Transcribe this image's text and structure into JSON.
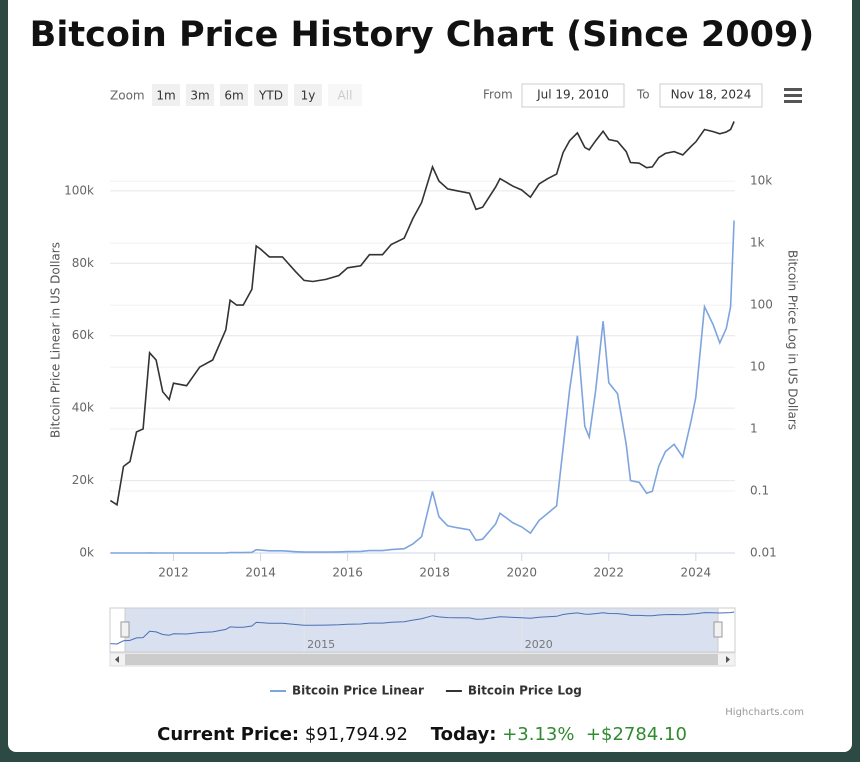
{
  "chart_data": {
    "type": "line",
    "title": "Bitcoin Price History Chart (Since 2009)",
    "y_label": "Bitcoin Price Linear in US Dollars",
    "y2_label": "Bitcoin Price Log in US Dollars",
    "x": [
      2010.55,
      2010.7,
      2010.85,
      2011.0,
      2011.15,
      2011.3,
      2011.45,
      2011.6,
      2011.75,
      2011.9,
      2012.0,
      2012.3,
      2012.6,
      2012.9,
      2013.2,
      2013.3,
      2013.45,
      2013.6,
      2013.8,
      2013.9,
      2014.0,
      2014.2,
      2014.5,
      2014.8,
      2015.0,
      2015.2,
      2015.5,
      2015.8,
      2016.0,
      2016.3,
      2016.5,
      2016.8,
      2017.0,
      2017.3,
      2017.5,
      2017.7,
      2017.95,
      2018.1,
      2018.3,
      2018.5,
      2018.8,
      2018.95,
      2019.1,
      2019.4,
      2019.5,
      2019.8,
      2020.0,
      2020.2,
      2020.4,
      2020.6,
      2020.8,
      2020.95,
      2021.1,
      2021.28,
      2021.45,
      2021.55,
      2021.7,
      2021.87,
      2022.0,
      2022.2,
      2022.4,
      2022.5,
      2022.7,
      2022.87,
      2023.0,
      2023.15,
      2023.3,
      2023.5,
      2023.7,
      2023.9,
      2024.0,
      2024.2,
      2024.4,
      2024.55,
      2024.7,
      2024.8,
      2024.88
    ],
    "series": [
      {
        "name": "Bitcoin Price Linear",
        "color": "#7ea4e0",
        "axis": "y",
        "values": [
          0.07,
          0.06,
          0.25,
          0.3,
          0.9,
          1.0,
          17,
          13,
          4,
          3,
          5.5,
          5,
          10,
          13,
          40,
          120,
          100,
          100,
          180,
          900,
          800,
          600,
          600,
          350,
          250,
          240,
          260,
          300,
          400,
          430,
          650,
          650,
          950,
          1200,
          2500,
          4500,
          17000,
          10000,
          7500,
          7000,
          6400,
          3500,
          3800,
          8000,
          11000,
          8300,
          7200,
          5500,
          9000,
          11000,
          13000,
          29000,
          45000,
          60000,
          35000,
          32000,
          45000,
          64000,
          47000,
          44000,
          30000,
          20000,
          19500,
          16500,
          17000,
          24000,
          28000,
          30000,
          26500,
          37000,
          43000,
          68000,
          63000,
          58000,
          62000,
          68000,
          91795
        ]
      },
      {
        "name": "Bitcoin Price Log",
        "color": "#333333",
        "axis": "y2",
        "values": [
          0.07,
          0.06,
          0.25,
          0.3,
          0.9,
          1.0,
          17,
          13,
          4,
          3,
          5.5,
          5,
          10,
          13,
          40,
          120,
          100,
          100,
          180,
          900,
          800,
          600,
          600,
          350,
          250,
          240,
          260,
          300,
          400,
          430,
          650,
          650,
          950,
          1200,
          2500,
          4500,
          17000,
          10000,
          7500,
          7000,
          6400,
          3500,
          3800,
          8000,
          11000,
          8300,
          7200,
          5500,
          9000,
          11000,
          13000,
          29000,
          45000,
          60000,
          35000,
          32000,
          45000,
          64000,
          47000,
          44000,
          30000,
          20000,
          19500,
          16500,
          17000,
          24000,
          28000,
          30000,
          26500,
          37000,
          43000,
          68000,
          63000,
          58000,
          62000,
          68000,
          91795
        ]
      }
    ],
    "xlim": [
      2010.54,
      2024.9
    ],
    "xticks": [
      2012,
      2014,
      2016,
      2018,
      2020,
      2022,
      2024
    ],
    "ylim": [
      0,
      119000
    ],
    "yticks": [
      {
        "value": 0,
        "label": "0k"
      },
      {
        "value": 20000,
        "label": "20k"
      },
      {
        "value": 40000,
        "label": "40k"
      },
      {
        "value": 60000,
        "label": "60k"
      },
      {
        "value": 80000,
        "label": "80k"
      },
      {
        "value": 100000,
        "label": "100k"
      }
    ],
    "y2lim": [
      0.01,
      90000
    ],
    "y2ticks": [
      0.01,
      0.1,
      1,
      10,
      100,
      {
        "value": 1000,
        "label": "1k"
      },
      {
        "value": 10000,
        "label": "10k"
      }
    ],
    "y2_log": true,
    "grid": true,
    "legend": "bottom",
    "navigator": {
      "xticks": [
        2015,
        2020
      ]
    }
  },
  "range_selector": {
    "zoom_label": "Zoom",
    "buttons": [
      "1m",
      "3m",
      "6m",
      "YTD",
      "1y",
      "All"
    ],
    "from_label": "From",
    "from": "Jul 19, 2010",
    "to_label": "To",
    "to": "Nov 18, 2024"
  },
  "credits": "Highcharts.com",
  "footer": {
    "price_label": "Current Price:",
    "price": "$91,794.92",
    "today_label": "Today:",
    "change_pct": "+3.13%",
    "change_abs": "+$2784.10"
  }
}
